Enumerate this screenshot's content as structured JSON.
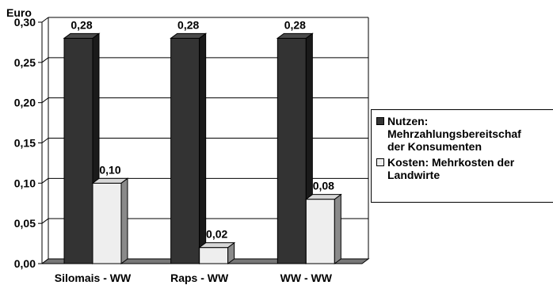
{
  "chart_data": {
    "type": "bar",
    "ylabel": "Euro",
    "ylim": [
      0,
      0.3
    ],
    "yticks": [
      "0,00",
      "0,05",
      "0,10",
      "0,15",
      "0,20",
      "0,25",
      "0,30"
    ],
    "categories": [
      "Silomais - WW",
      "Raps - WW",
      "WW - WW"
    ],
    "series": [
      {
        "name": "Nutzen: Mehrzahlungsbereitschaft der Konsumenten",
        "values": [
          0.28,
          0.28,
          0.28
        ],
        "labels": [
          "0,28",
          "0,28",
          "0,28"
        ],
        "color": "#333333"
      },
      {
        "name": "Kosten: Mehrkosten der Landwirte",
        "values": [
          0.1,
          0.02,
          0.08
        ],
        "labels": [
          "0,10",
          "0,02",
          "0,08"
        ],
        "color": "#eeeeee"
      }
    ],
    "grid": true,
    "legend_position": "right",
    "style": "3d"
  },
  "legend": {
    "items": [
      {
        "text": "Nutzen:\nMehrzahlungsbereitschaf\nder Konsumenten"
      },
      {
        "text": "Kosten: Mehrkosten der\nLandwirte"
      }
    ]
  }
}
